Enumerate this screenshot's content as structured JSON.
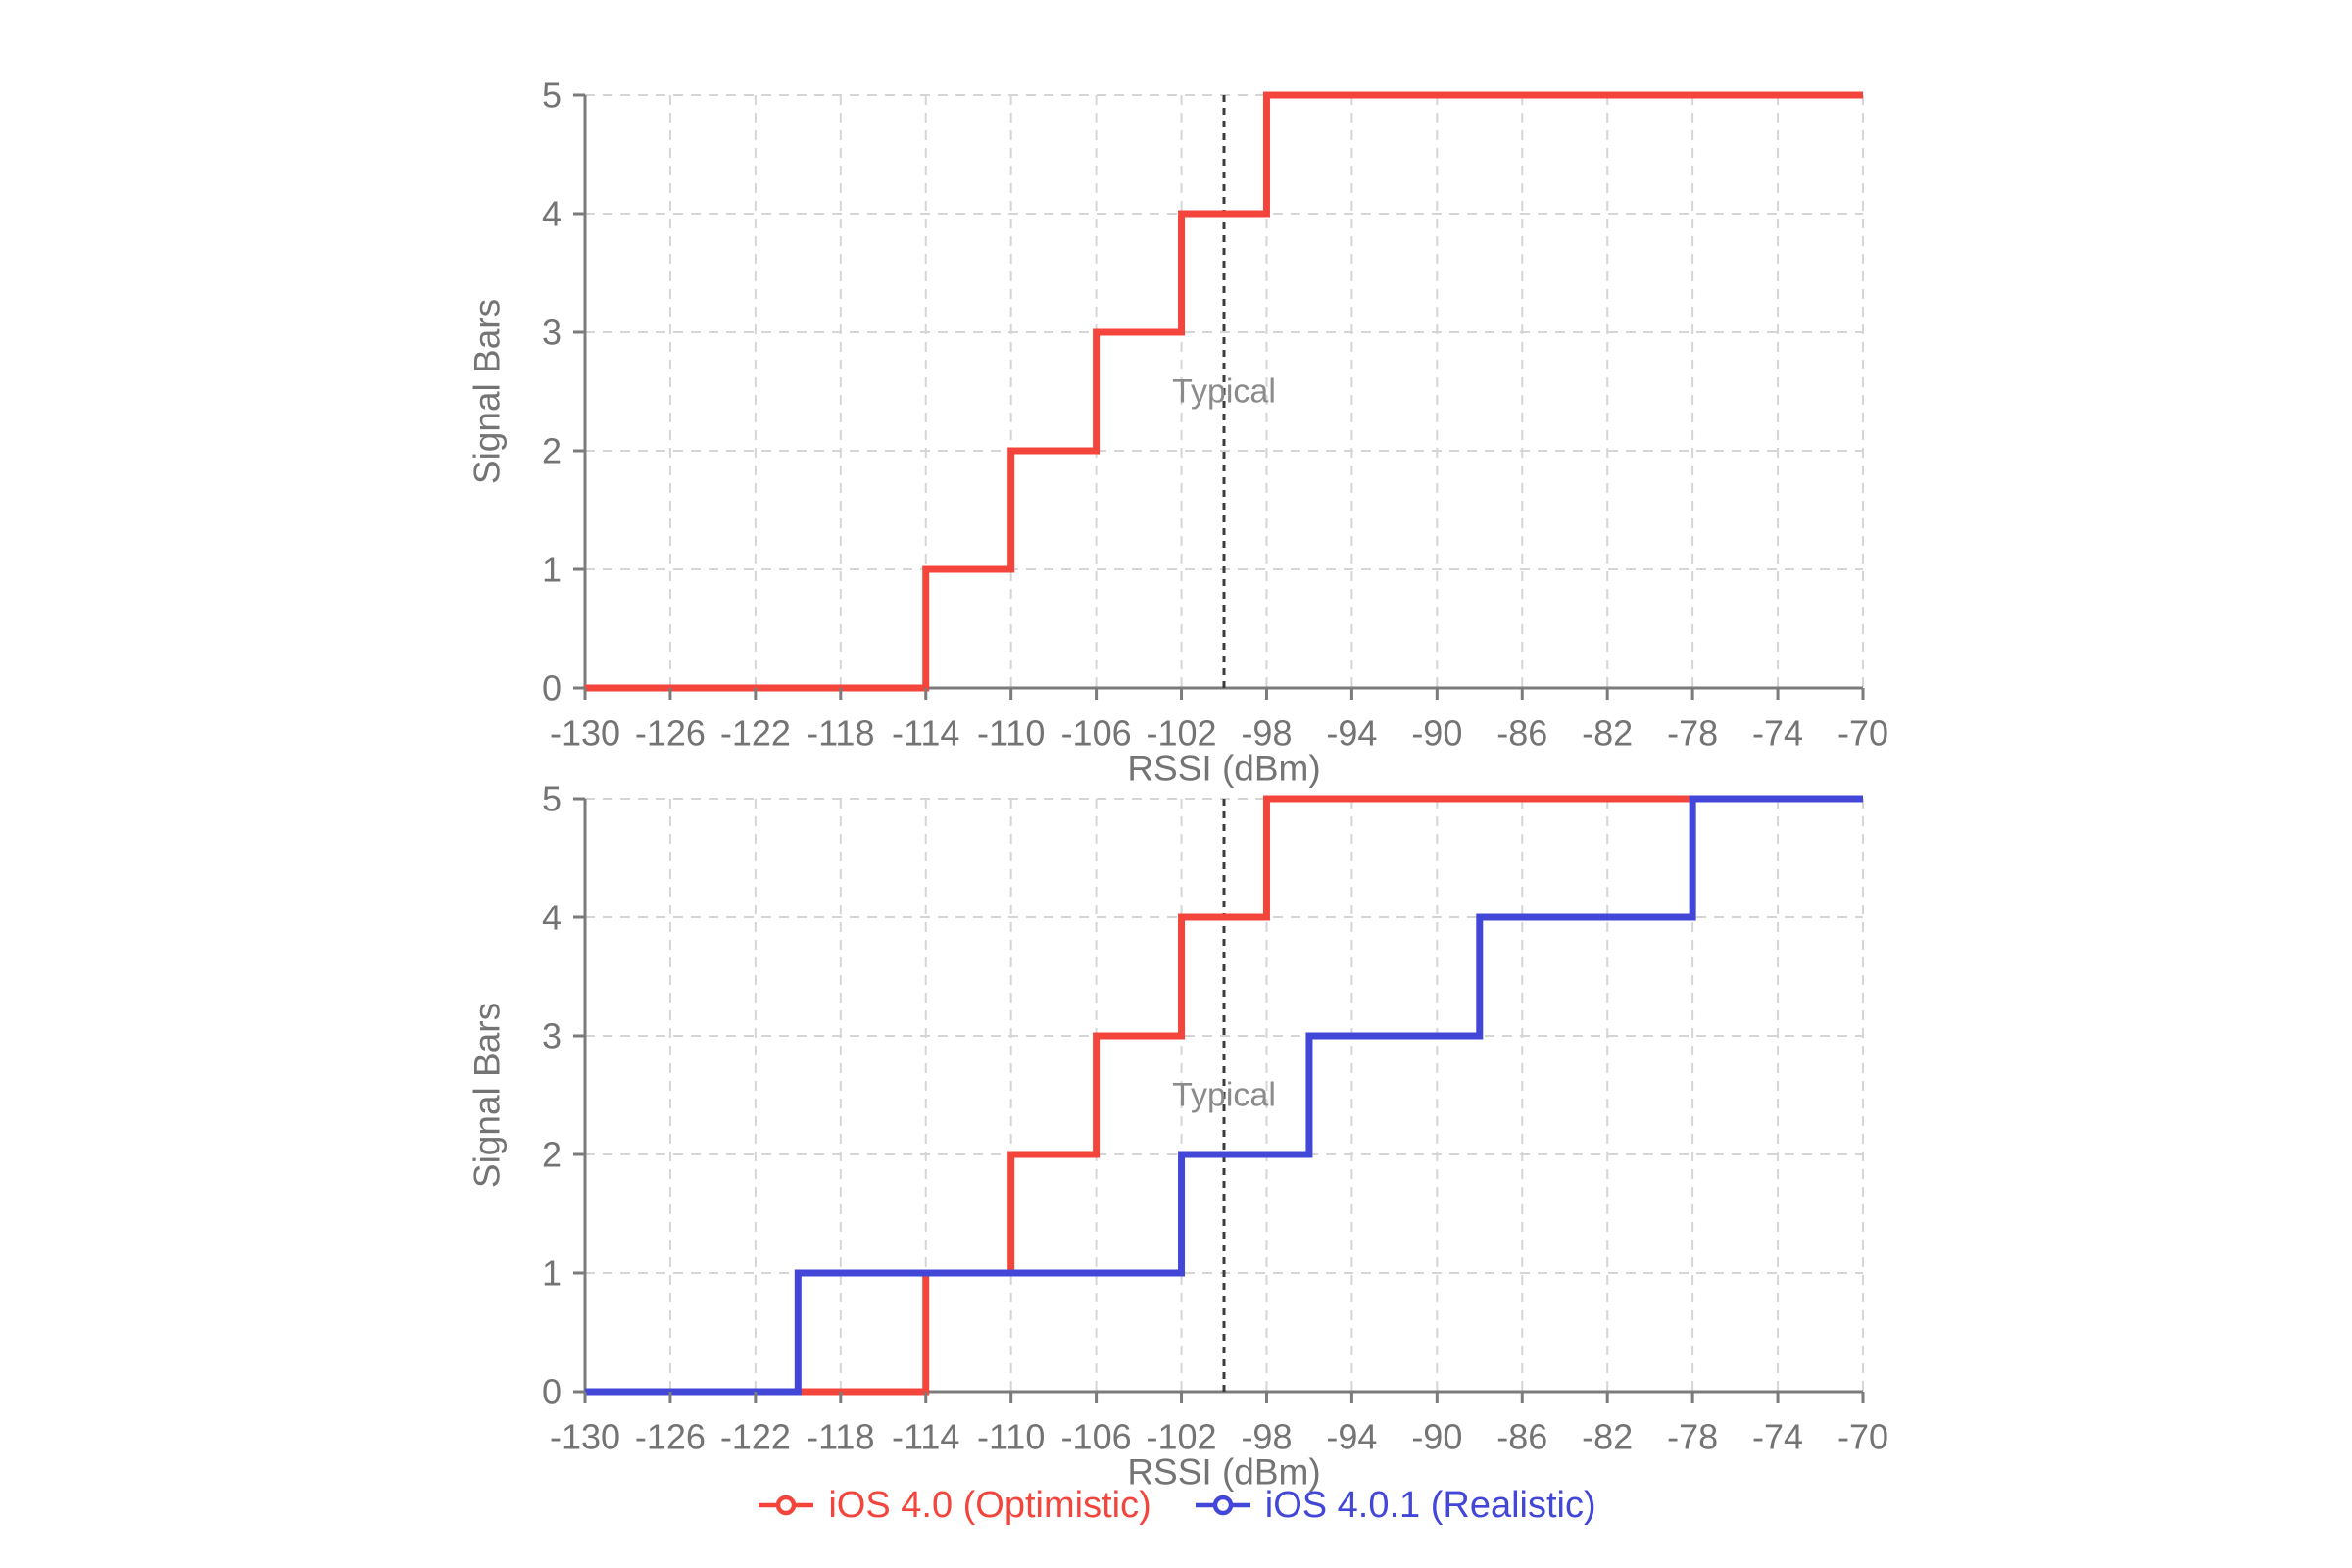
{
  "page": {
    "background": "#ffffff"
  },
  "colors": {
    "red_series": "#F4453D",
    "blue_series": "#4347D8",
    "grid": "#D5D5D5",
    "axis": "#7B7B7B",
    "tick_label": "#747474",
    "axis_title": "#747474",
    "annotation_line": "#3C3C3C",
    "annotation_text": "#8B8B8B"
  },
  "chart_data": [
    {
      "type": "line",
      "subtype": "step",
      "title": "",
      "xlabel": "RSSI (dBm)",
      "ylabel": "Signal Bars",
      "xlim": [
        -130,
        -70
      ],
      "ylim": [
        0,
        5
      ],
      "grid": true,
      "xticks": [
        -130,
        -126,
        -122,
        -118,
        -114,
        -110,
        -106,
        -102,
        -98,
        -94,
        -90,
        -86,
        -82,
        -78,
        -74,
        -70
      ],
      "xtick_labels": [
        "-130",
        "-126",
        "-122",
        "-118",
        "-114",
        "-110",
        "-106",
        "-102",
        "-98",
        "-94",
        "-90",
        "-86",
        "-82",
        "-78",
        "-74",
        "-70"
      ],
      "yticks": [
        0,
        1,
        2,
        3,
        4,
        5
      ],
      "ytick_labels": [
        "0",
        "1",
        "2",
        "3",
        "4",
        "5"
      ],
      "annotations": [
        {
          "text": "Typical",
          "x": -100,
          "y": 2.5,
          "line": "vertical-dashed-full-height"
        }
      ],
      "series": [
        {
          "name": "iOS 4.0 (Optimistic)",
          "color": "#F4453D",
          "x": [
            -130,
            -114,
            -114,
            -110,
            -110,
            -106,
            -106,
            -102,
            -102,
            -98,
            -98,
            -70
          ],
          "y": [
            0,
            0,
            1,
            1,
            2,
            2,
            3,
            3,
            4,
            4,
            5,
            5
          ],
          "bar_thresholds": {
            "1": -114,
            "2": -110,
            "3": -106,
            "4": -102,
            "5": -98
          }
        }
      ],
      "legend_shown": false
    },
    {
      "type": "line",
      "subtype": "step",
      "title": "",
      "xlabel": "RSSI (dBm)",
      "ylabel": "Signal Bars",
      "xlim": [
        -130,
        -70
      ],
      "ylim": [
        0,
        5
      ],
      "grid": true,
      "xticks": [
        -130,
        -126,
        -122,
        -118,
        -114,
        -110,
        -106,
        -102,
        -98,
        -94,
        -90,
        -86,
        -82,
        -78,
        -74,
        -70
      ],
      "xtick_labels": [
        "-130",
        "-126",
        "-122",
        "-118",
        "-114",
        "-110",
        "-106",
        "-102",
        "-98",
        "-94",
        "-90",
        "-86",
        "-82",
        "-78",
        "-74",
        "-70"
      ],
      "yticks": [
        0,
        1,
        2,
        3,
        4,
        5
      ],
      "ytick_labels": [
        "0",
        "1",
        "2",
        "3",
        "4",
        "5"
      ],
      "annotations": [
        {
          "text": "Typical",
          "x": -100,
          "y": 2.5,
          "line": "vertical-dashed-full-height"
        }
      ],
      "series": [
        {
          "name": "iOS 4.0 (Optimistic)",
          "color": "#F4453D",
          "x": [
            -130,
            -114,
            -114,
            -110,
            -110,
            -106,
            -106,
            -102,
            -102,
            -98,
            -98,
            -70
          ],
          "y": [
            0,
            0,
            1,
            1,
            2,
            2,
            3,
            3,
            4,
            4,
            5,
            5
          ],
          "bar_thresholds": {
            "1": -114,
            "2": -110,
            "3": -106,
            "4": -102,
            "5": -98
          }
        },
        {
          "name": "iOS 4.0.1 (Realistic)",
          "color": "#4347D8",
          "x": [
            -130,
            -120,
            -120,
            -102,
            -102,
            -96,
            -96,
            -88,
            -88,
            -78,
            -78,
            -70
          ],
          "y": [
            0,
            0,
            1,
            1,
            2,
            2,
            3,
            3,
            4,
            4,
            5,
            5
          ],
          "bar_thresholds": {
            "1": -120,
            "2": -102,
            "3": -96,
            "4": -88,
            "5": -78
          }
        }
      ],
      "legend_shown": true
    }
  ],
  "legend": {
    "position": "bottom-center",
    "items": [
      {
        "label": "iOS 4.0 (Optimistic)",
        "color": "#F4453D"
      },
      {
        "label": "iOS 4.0.1 (Realistic)",
        "color": "#4347D8"
      }
    ]
  }
}
